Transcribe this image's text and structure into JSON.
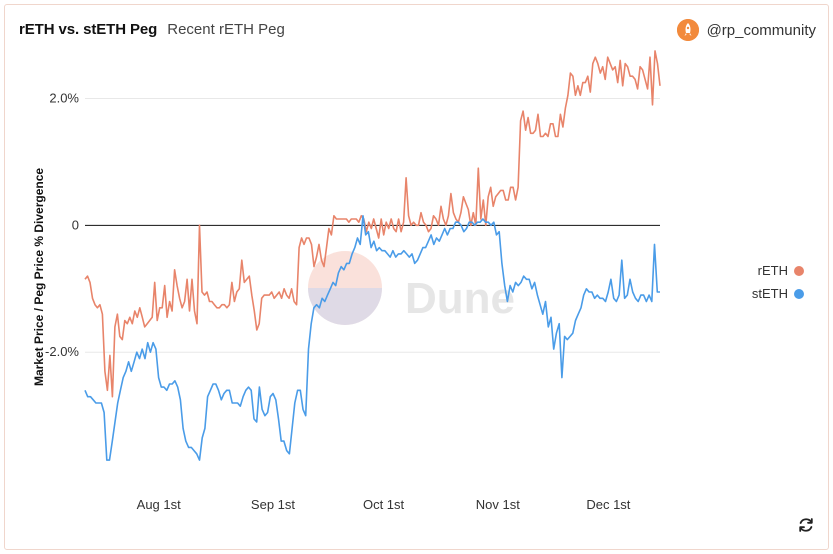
{
  "header": {
    "title": "rETH vs. stETH Peg",
    "subtitle": "Recent rETH Peg",
    "author": "@rp_community"
  },
  "watermark": "Dune",
  "icons": {
    "avatar": "rocket-avatar-icon",
    "refresh": "refresh-icon"
  },
  "colors": {
    "reth": "#e8846a",
    "steth": "#4a9ce8",
    "zero_line": "#111111",
    "grid": "#e8e8e8"
  },
  "chart_data": {
    "type": "line",
    "ylabel": "Market Price / Peg Price % Divergence",
    "y_ticks": [
      {
        "value": 2.0,
        "label": "2.0%"
      },
      {
        "value": 0,
        "label": "0"
      },
      {
        "value": -2.0,
        "label": "-2.0%"
      }
    ],
    "x_ticks": [
      {
        "date": "2022-08-01",
        "label": "Aug 1st"
      },
      {
        "date": "2022-09-01",
        "label": "Sep 1st"
      },
      {
        "date": "2022-10-01",
        "label": "Oct 1st"
      },
      {
        "date": "2022-11-01",
        "label": "Nov 1st"
      },
      {
        "date": "2022-12-01",
        "label": "Dec 1st"
      }
    ],
    "x_start": "2022-07-12",
    "x_end": "2022-12-15",
    "ylim": [
      -4.25,
      3.0
    ],
    "legend_position": "right",
    "series": [
      {
        "name": "rETH",
        "color": "#e8846a",
        "values": [
          -0.85,
          -0.8,
          -0.9,
          -1.15,
          -1.25,
          -1.3,
          -1.25,
          -1.4,
          -2.3,
          -2.6,
          -2.05,
          -2.7,
          -1.6,
          -1.4,
          -1.75,
          -1.8,
          -1.5,
          -1.55,
          -1.45,
          -1.55,
          -1.35,
          -1.45,
          -1.3,
          -1.45,
          -1.6,
          -1.55,
          -1.5,
          -1.45,
          -0.9,
          -1.5,
          -1.3,
          -1.3,
          -0.95,
          -1.45,
          -1.2,
          -1.35,
          -0.7,
          -0.95,
          -1.15,
          -1.3,
          -1.2,
          -0.85,
          -1.35,
          -0.85,
          -1.35,
          -1.55,
          0.0,
          -1.05,
          -1.1,
          -1.05,
          -1.2,
          -1.2,
          -1.25,
          -1.3,
          -1.3,
          -1.25,
          -1.25,
          -1.3,
          -1.25,
          -0.9,
          -1.2,
          -1.05,
          -1.0,
          -0.55,
          -0.9,
          -0.85,
          -0.8,
          -1.1,
          -1.35,
          -1.65,
          -1.55,
          -1.15,
          -1.1,
          -1.1,
          -1.1,
          -1.05,
          -1.15,
          -1.1,
          -1.05,
          -1.15,
          -1.0,
          -1.1,
          -1.15,
          -1.0,
          -1.2,
          -1.25,
          -0.35,
          -0.2,
          -0.3,
          -0.2,
          -0.2,
          -0.3,
          -0.65,
          -0.5,
          -0.3,
          -0.55,
          -0.65,
          -0.35,
          -0.05,
          -0.15,
          0.15,
          0.1,
          0.1,
          0.1,
          0.1,
          0.1,
          0.05,
          0.1,
          0.1,
          0.1,
          0.05,
          0.15,
          0.1,
          -0.1,
          0.05,
          -0.05,
          0.1,
          -0.05,
          -0.2,
          0.1,
          -0.15,
          0.05,
          -0.05,
          0.1,
          -0.05,
          -0.1,
          0.1,
          -0.1,
          0.05,
          0.75,
          0.15,
          0.0,
          0.05,
          0.0,
          0.0,
          0.2,
          0.05,
          0.0,
          -0.1,
          -0.05,
          0.15,
          0.1,
          0.0,
          0.3,
          0.1,
          0.0,
          0.15,
          0.5,
          0.2,
          0.1,
          0.05,
          0.2,
          0.45,
          0.35,
          0.25,
          0.0,
          0.2,
          0.0,
          0.9,
          0.1,
          0.4,
          0.0,
          0.45,
          0.6,
          0.3,
          0.45,
          0.5,
          0.55,
          0.55,
          0.4,
          0.4,
          0.6,
          0.6,
          0.4,
          0.6,
          1.65,
          1.8,
          1.5,
          1.7,
          1.45,
          1.45,
          1.5,
          1.75,
          1.4,
          1.4,
          1.45,
          1.4,
          1.6,
          1.6,
          1.4,
          1.4,
          1.75,
          1.55,
          1.85,
          2.05,
          2.4,
          2.35,
          2.05,
          2.2,
          2.05,
          2.25,
          2.25,
          2.35,
          2.1,
          2.55,
          2.65,
          2.55,
          2.4,
          2.5,
          2.3,
          2.65,
          2.55,
          2.45,
          2.5,
          2.25,
          2.6,
          2.2,
          2.55,
          2.5,
          2.35,
          2.35,
          2.3,
          2.15,
          2.5,
          2.45,
          2.3,
          2.15,
          2.65,
          1.9,
          2.75,
          2.55,
          2.2
        ]
      },
      {
        "name": "stETH",
        "color": "#4a9ce8",
        "values": [
          -2.6,
          -2.7,
          -2.7,
          -2.75,
          -2.8,
          -2.8,
          -2.8,
          -2.95,
          -3.7,
          -3.7,
          -3.4,
          -3.1,
          -2.8,
          -2.6,
          -2.4,
          -2.3,
          -2.15,
          -2.3,
          -2.15,
          -2.0,
          -2.1,
          -1.95,
          -2.1,
          -1.85,
          -2.0,
          -1.85,
          -1.95,
          -2.4,
          -2.55,
          -2.55,
          -2.6,
          -2.5,
          -2.5,
          -2.45,
          -2.55,
          -2.75,
          -3.2,
          -3.4,
          -3.5,
          -3.5,
          -3.55,
          -3.6,
          -3.7,
          -3.35,
          -3.2,
          -2.7,
          -2.6,
          -2.5,
          -2.5,
          -2.6,
          -2.75,
          -2.65,
          -2.6,
          -2.6,
          -2.8,
          -2.8,
          -2.8,
          -2.85,
          -2.7,
          -2.6,
          -2.55,
          -2.6,
          -3.05,
          -3.1,
          -2.55,
          -2.9,
          -3.0,
          -2.95,
          -2.7,
          -2.65,
          -2.75,
          -3.05,
          -3.4,
          -3.4,
          -3.55,
          -3.6,
          -3.2,
          -2.8,
          -2.6,
          -2.6,
          -2.9,
          -3.0,
          -1.95,
          -1.55,
          -1.3,
          -1.25,
          -1.3,
          -1.15,
          -1.2,
          -1.1,
          -1.0,
          -0.9,
          -0.95,
          -0.75,
          -0.65,
          -0.7,
          -0.6,
          -0.6,
          -0.45,
          -0.35,
          -0.2,
          -0.3,
          0.15,
          -0.15,
          -0.1,
          -0.35,
          -0.25,
          -0.4,
          -0.35,
          -0.4,
          -0.4,
          -0.45,
          -0.5,
          -0.4,
          -0.5,
          -0.45,
          -0.45,
          -0.4,
          -0.45,
          -0.5,
          -0.45,
          -0.6,
          -0.55,
          -0.45,
          -0.35,
          -0.35,
          -0.25,
          -0.15,
          -0.3,
          -0.2,
          -0.25,
          -0.15,
          -0.05,
          -0.15,
          -0.05,
          -0.05,
          0.05,
          0.05,
          0.0,
          -0.1,
          -0.05,
          0.05,
          0.05,
          0.0,
          0.05,
          0.05,
          0.1,
          0.05,
          0.05,
          0.0,
          0.05,
          -0.15,
          -0.1,
          -0.6,
          -0.95,
          -1.2,
          -0.95,
          -1.05,
          -0.9,
          -0.95,
          -0.9,
          -0.8,
          -0.85,
          -0.85,
          -1.0,
          -0.9,
          -1.1,
          -1.25,
          -1.4,
          -1.2,
          -1.6,
          -1.45,
          -1.95,
          -1.7,
          -1.55,
          -2.4,
          -1.75,
          -1.8,
          -1.75,
          -1.7,
          -1.5,
          -1.4,
          -1.3,
          -1.1,
          -1.0,
          -1.05,
          -1.05,
          -1.15,
          -1.1,
          -1.15,
          -1.15,
          -1.2,
          -1.05,
          -0.85,
          -1.15,
          -1.2,
          -1.1,
          -0.55,
          -1.15,
          -1.1,
          -0.85,
          -1.05,
          -1.15,
          -1.2,
          -1.1,
          -1.1,
          -1.2,
          -1.1,
          -1.2,
          -0.3,
          -1.05,
          -1.05
        ]
      }
    ]
  }
}
